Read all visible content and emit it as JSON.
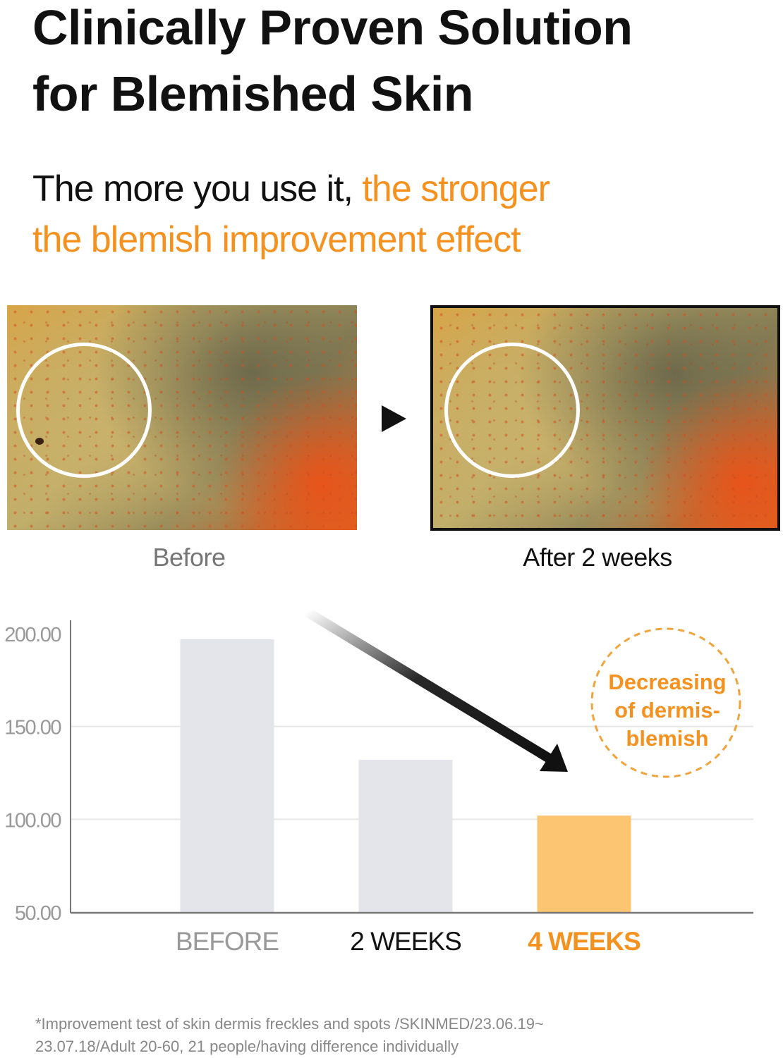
{
  "title": [
    "Clinically Proven Solution",
    "for Blemished Skin"
  ],
  "subtitle": {
    "plain": "The more you use it, ",
    "highlight1": "the stronger",
    "highlight2": "the blemish improvement effect"
  },
  "photos": {
    "before_caption": "Before",
    "after_caption": "After 2 weeks",
    "arrow_icon": "play-triangle-icon"
  },
  "annotation": [
    "Decreasing",
    "of dermis-",
    "blemish"
  ],
  "colors": {
    "accent": "#f5911e",
    "bar_gray": "#e3e5ea",
    "bar_highlight": "#fcc572",
    "caption_gray": "#777777"
  },
  "chart_data": {
    "type": "bar",
    "categories": [
      "BEFORE",
      "2 WEEKS",
      "4 WEEKS"
    ],
    "values": [
      197,
      132,
      102
    ],
    "ylim": [
      50,
      200
    ],
    "yticks": [
      "50.00",
      "100.00",
      "150.00",
      "200.00"
    ],
    "grid": true,
    "highlight": "4 WEEKS"
  },
  "footnote": [
    "*Improvement test of skin dermis freckles and spots /SKINMED/23.06.19~",
    "23.07.18/Adult 20-60, 21 people/having difference individually"
  ]
}
